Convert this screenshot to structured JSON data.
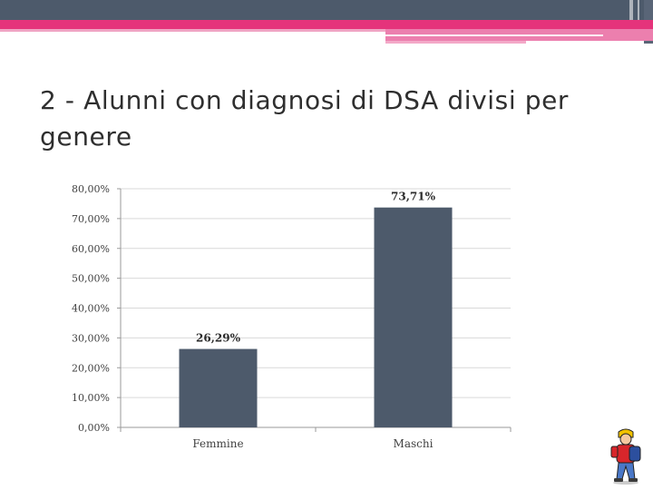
{
  "slide": {
    "title": "2 - Alunni con diagnosi di DSA divisi per genere"
  },
  "colors": {
    "bar": "#4d5a6b",
    "grid": "#d9d9d9",
    "accent_pink": "#e5337b",
    "header_dark": "#4d5a6b"
  },
  "chart_data": {
    "type": "bar",
    "categories": [
      "Femmine",
      "Maschi"
    ],
    "values": [
      26.29,
      73.71
    ],
    "data_labels": [
      "26,29%",
      "73,71%"
    ],
    "y_ticks": [
      "0,00%",
      "10,00%",
      "20,00%",
      "30,00%",
      "40,00%",
      "50,00%",
      "60,00%",
      "70,00%",
      "80,00%"
    ],
    "ylim": [
      0,
      80
    ],
    "grid": true,
    "legend": "none",
    "title": "",
    "xlabel": "",
    "ylabel": ""
  },
  "icons": {
    "mascot": "student-with-backpack-icon"
  }
}
